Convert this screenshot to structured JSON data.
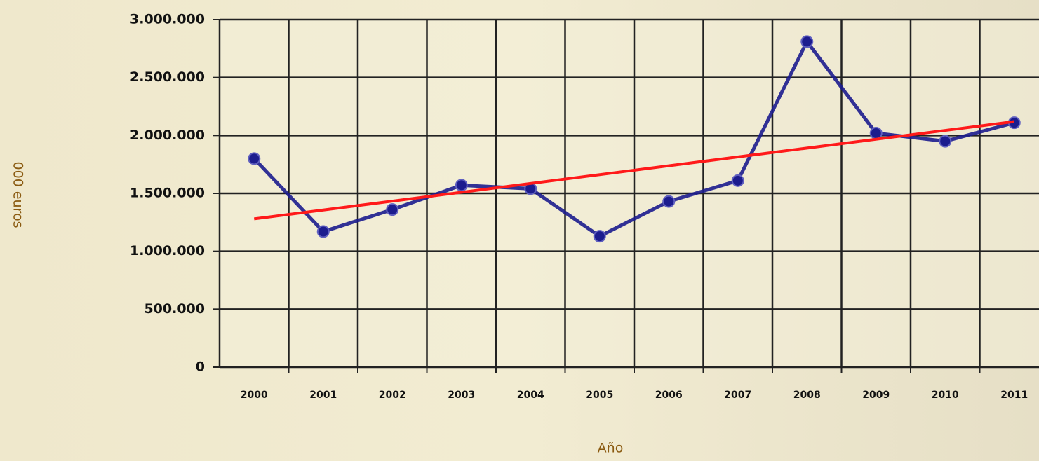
{
  "chart_data": {
    "type": "line",
    "x_label": "Año",
    "y_label": "000 euros",
    "categories": [
      "2000",
      "2001",
      "2002",
      "2003",
      "2004",
      "2005",
      "2006",
      "2007",
      "2008",
      "2009",
      "2010",
      "2011"
    ],
    "series": [
      {
        "color": "#1c1c8e",
        "values": [
          1800000,
          1170000,
          1360000,
          1570000,
          1540000,
          1130000,
          1430000,
          1610000,
          2810000,
          2020000,
          1950000,
          2110000
        ]
      }
    ],
    "trendline": {
      "color": "#ff1a1a",
      "values": [
        1280000,
        2120000
      ]
    },
    "ylim": [
      0,
      3000000
    ],
    "yticks": [
      0,
      {
        "value": 500000,
        "label": "500.000"
      },
      {
        "value": 1000000,
        "label": "1.000.000"
      },
      {
        "value": 1500000,
        "label": "1.500.000"
      },
      {
        "value": 2000000,
        "label": "2.000.000"
      },
      {
        "value": 2500000,
        "label": "2.500.000"
      },
      {
        "value": 3000000,
        "label": "3.000.000"
      }
    ],
    "grid": true
  }
}
